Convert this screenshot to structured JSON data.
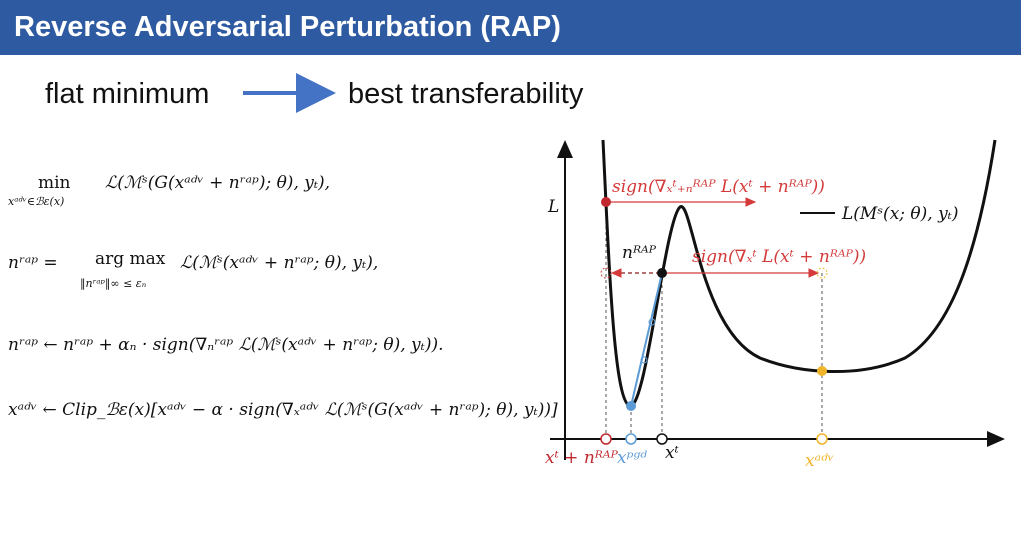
{
  "header": {
    "title": "Reverse Adversarial Perturbation (RAP)"
  },
  "tagline": {
    "left": "flat minimum",
    "right": "best transferability"
  },
  "equations": [
    {
      "op": "min",
      "sub": "xᵃᵈᵛ∈ℬε(x)",
      "expr": "ℒ(ℳˢ(G(xᵃᵈᵛ + nʳᵃᵖ); θ), yₜ),"
    },
    {
      "lhs": "nʳᵃᵖ =",
      "op": "arg max",
      "sub": "‖nʳᵃᵖ‖∞ ≤ εₙ",
      "expr": "ℒ(ℳˢ(xᵃᵈᵛ + nʳᵃᵖ; θ), yₜ),"
    },
    {
      "expr": "nʳᵃᵖ ← nʳᵃᵖ + αₙ · sign(∇ₙʳᵃᵖ ℒ(ℳˢ(xᵃᵈᵛ + nʳᵃᵖ; θ), yₜ))."
    },
    {
      "expr": "xᵃᵈᵛ ← Clip_ℬε(x)[xᵃᵈᵛ − α · sign(∇ₓᵃᵈᵛ ℒ(ℳˢ(G(xᵃᵈᵛ + nʳᵃᵖ); θ), yₜ))]"
    }
  ],
  "diagram": {
    "y_axis_label": "L",
    "legend": "L(Mˢ(x; θ), yₜ)",
    "arrow_top": "sign(∇ₓᵗ₊ₙᴿᴬᴾ L(xᵗ + nᴿᴬᴾ))",
    "arrow_mid": "sign(∇ₓᵗ L(xᵗ + nᴿᴬᴾ))",
    "point_label": "nᴿᴬᴾ",
    "x_labels": [
      "xᵗ + nᴿᴬᴾ",
      "xᵖᵍᵈ",
      "xᵗ",
      "xᵃᵈᵛ"
    ]
  }
}
